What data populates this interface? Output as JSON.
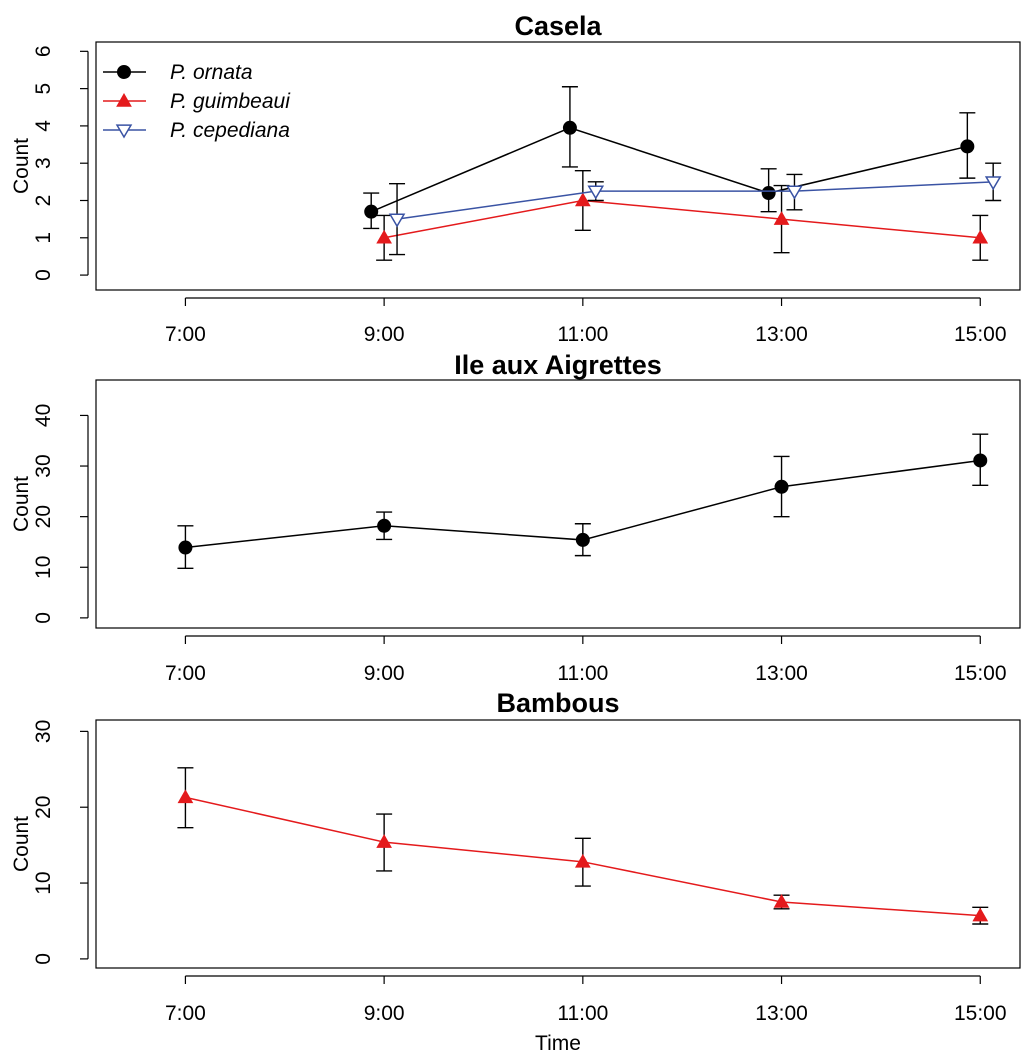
{
  "colors": {
    "P. ornata": "#000000",
    "P. guimbeaui": "#e41a1c",
    "P. cepediana": "#3a53a4"
  },
  "shared_xlabel": "Time",
  "chart_data": [
    {
      "type": "line",
      "title": "Casela",
      "ylabel": "Count",
      "xlabel": "",
      "x_ticks": [
        7,
        9,
        11,
        13,
        15
      ],
      "x_tick_labels": [
        "7:00",
        "9:00",
        "11:00",
        "13:00",
        "15:00"
      ],
      "xlim": [
        7,
        15
      ],
      "y_ticks": [
        0,
        1,
        2,
        3,
        4,
        5,
        6
      ],
      "ylim": [
        0,
        6
      ],
      "legend": {
        "position": "top-left",
        "entries": [
          {
            "label": "P. ornata",
            "marker": "circle"
          },
          {
            "label": "P. guimbeaui",
            "marker": "triangle-up"
          },
          {
            "label": "P. cepediana",
            "marker": "triangle-down-open"
          }
        ]
      },
      "series": [
        {
          "name": "P. ornata",
          "marker": "circle",
          "x": [
            9,
            11,
            13,
            15
          ],
          "y": [
            1.7,
            3.95,
            2.2,
            3.45
          ],
          "err_low": [
            1.25,
            2.9,
            1.7,
            2.6
          ],
          "err_high": [
            2.2,
            5.05,
            2.85,
            4.35
          ]
        },
        {
          "name": "P. guimbeaui",
          "marker": "triangle-up",
          "x": [
            9,
            11,
            13,
            15
          ],
          "y": [
            1.0,
            2.0,
            1.5,
            1.0
          ],
          "err_low": [
            0.4,
            1.2,
            0.6,
            0.4
          ],
          "err_high": [
            1.6,
            2.8,
            2.4,
            1.6
          ]
        },
        {
          "name": "P. cepediana",
          "marker": "triangle-down-open",
          "x": [
            9,
            11,
            13,
            15
          ],
          "y": [
            1.5,
            2.25,
            2.25,
            2.5
          ],
          "err_low": [
            0.55,
            2.0,
            1.75,
            2.0
          ],
          "err_high": [
            2.45,
            2.5,
            2.7,
            3.0
          ]
        }
      ]
    },
    {
      "type": "line",
      "title": "Ile aux Aigrettes",
      "ylabel": "Count",
      "xlabel": "",
      "x_ticks": [
        7,
        9,
        11,
        13,
        15
      ],
      "x_tick_labels": [
        "7:00",
        "9:00",
        "11:00",
        "13:00",
        "15:00"
      ],
      "xlim": [
        7,
        15
      ],
      "y_ticks": [
        0,
        10,
        20,
        30,
        40
      ],
      "ylim": [
        0,
        45
      ],
      "series": [
        {
          "name": "P. ornata",
          "marker": "circle",
          "x": [
            7,
            9,
            11,
            13,
            15
          ],
          "y": [
            13.9,
            18.2,
            15.4,
            25.9,
            31.1
          ],
          "err_low": [
            9.8,
            15.5,
            12.3,
            20.0,
            26.2
          ],
          "err_high": [
            18.2,
            20.9,
            18.6,
            31.9,
            36.3
          ]
        }
      ]
    },
    {
      "type": "line",
      "title": "Bambous",
      "ylabel": "Count",
      "xlabel": "Time",
      "x_ticks": [
        7,
        9,
        11,
        13,
        15
      ],
      "x_tick_labels": [
        "7:00",
        "9:00",
        "11:00",
        "13:00",
        "15:00"
      ],
      "xlim": [
        7,
        15
      ],
      "y_ticks": [
        0,
        10,
        20,
        30
      ],
      "ylim": [
        0,
        30
      ],
      "series": [
        {
          "name": "P. guimbeaui",
          "marker": "triangle-up",
          "x": [
            7,
            9,
            11,
            13,
            15
          ],
          "y": [
            21.3,
            15.4,
            12.8,
            7.5,
            5.7
          ],
          "err_low": [
            17.3,
            11.6,
            9.6,
            6.6,
            4.6
          ],
          "err_high": [
            25.2,
            19.1,
            15.9,
            8.4,
            6.8
          ]
        }
      ]
    }
  ]
}
